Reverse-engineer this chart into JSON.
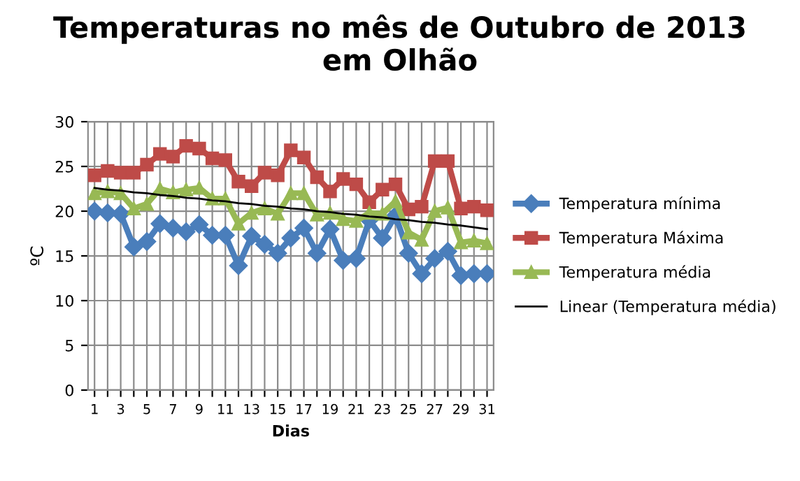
{
  "chart_data": {
    "type": "line",
    "title": "Temperaturas no mês de Outubro de 2013\nem Olhão",
    "xlabel": "Dias",
    "ylabel": "ºC",
    "categories": [
      "1",
      null,
      "3",
      null,
      "5",
      null,
      "7",
      null,
      "9",
      null,
      "11",
      null,
      "13",
      null,
      "15",
      null,
      "17",
      null,
      "19",
      null,
      "21",
      null,
      "23",
      null,
      "25",
      null,
      "27",
      null,
      "29",
      null,
      "31"
    ],
    "series": [
      {
        "name": "Temperatura mínima",
        "color": "#4a7ebb",
        "marker": "diamond",
        "values": [
          20,
          19.8,
          19.7,
          16,
          16.6,
          18.6,
          18.1,
          17.7,
          18.5,
          17.3,
          17.3,
          13.9,
          17.2,
          16.3,
          15.3,
          17,
          18.1,
          15.3,
          18,
          14.5,
          14.7,
          19,
          17,
          19.5,
          15.3,
          13,
          14.7,
          15.5,
          12.8,
          13,
          13
        ]
      },
      {
        "name": "Temperatura Máxima",
        "color": "#be4b48",
        "marker": "square",
        "values": [
          24,
          24.5,
          24.3,
          24.3,
          25.2,
          26.4,
          26.1,
          27.3,
          27,
          25.9,
          25.7,
          23.3,
          22.8,
          24.3,
          24,
          26.8,
          26,
          23.8,
          22.2,
          23.6,
          23,
          21,
          22.4,
          23,
          20.2,
          20.5,
          25.6,
          25.6,
          20.3,
          20.5,
          20.1
        ]
      },
      {
        "name": "Temperatura média",
        "color": "#98b954",
        "marker": "triangle",
        "values": [
          22,
          22.2,
          22,
          20.3,
          20.8,
          22.5,
          22.1,
          22.4,
          22.6,
          21.4,
          21.4,
          18.6,
          19.8,
          20.3,
          19.7,
          22,
          22,
          19.6,
          19.8,
          19.1,
          18.9,
          19.8,
          19.7,
          21.1,
          17.6,
          16.8,
          20,
          20.4,
          16.5,
          16.7,
          16.4
        ]
      },
      {
        "name": "Linear (Temperatura média)",
        "color": "#000000",
        "marker": "none",
        "values": [
          22.6,
          22.4,
          22.3,
          22.1,
          22.0,
          21.8,
          21.7,
          21.5,
          21.4,
          21.2,
          21.1,
          20.9,
          20.8,
          20.6,
          20.5,
          20.3,
          20.2,
          20.0,
          19.9,
          19.7,
          19.6,
          19.4,
          19.3,
          19.1,
          19.0,
          18.8,
          18.7,
          18.5,
          18.4,
          18.2,
          18.0
        ]
      }
    ],
    "ylim": [
      0,
      30
    ],
    "yticks": [
      0,
      5,
      10,
      15,
      20,
      25,
      30
    ],
    "grid": true,
    "legend": "right",
    "line_style": "solid"
  }
}
